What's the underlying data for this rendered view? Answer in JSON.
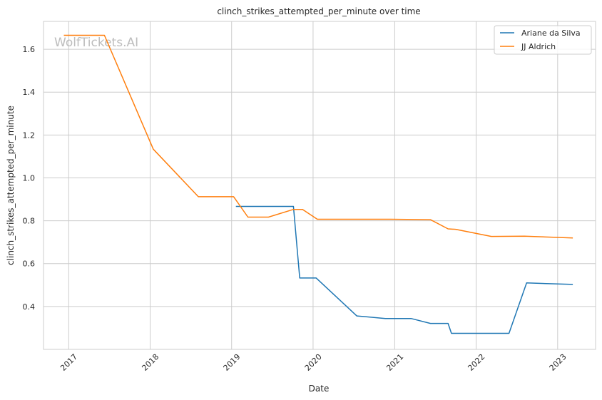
{
  "chart_data": {
    "type": "line",
    "title": "clinch_strikes_attempted_per_minute over time",
    "xlabel": "Date",
    "ylabel": "clinch_strikes_attempted_per_minute",
    "watermark": "WolfTickets.AI",
    "x_ticks": [
      "2017",
      "2018",
      "2019",
      "2020",
      "2021",
      "2022",
      "2023"
    ],
    "y_ticks": [
      "0.4",
      "0.6",
      "0.8",
      "1.0",
      "1.2",
      "1.4",
      "1.6"
    ],
    "xlim": [
      "2016-09-10",
      "2023-06-20"
    ],
    "ylim": [
      0.2,
      1.73
    ],
    "grid": true,
    "legend_position": "top-right",
    "series": [
      {
        "name": "Ariane da Silva",
        "color": "#1f77b4",
        "points": [
          [
            "2019-01-20",
            0.867
          ],
          [
            "2019-10-05",
            0.867
          ],
          [
            "2019-11-02",
            0.533
          ],
          [
            "2020-01-15",
            0.533
          ],
          [
            "2020-07-15",
            0.356
          ],
          [
            "2020-11-20",
            0.344
          ],
          [
            "2021-03-15",
            0.344
          ],
          [
            "2021-06-10",
            0.321
          ],
          [
            "2021-08-28",
            0.321
          ],
          [
            "2021-09-12",
            0.275
          ],
          [
            "2022-05-28",
            0.275
          ],
          [
            "2022-08-15",
            0.51
          ],
          [
            "2023-03-10",
            0.503
          ]
        ]
      },
      {
        "name": "JJ Aldrich",
        "color": "#ff7f0e",
        "points": [
          [
            "2016-12-10",
            1.665
          ],
          [
            "2017-06-10",
            1.665
          ],
          [
            "2018-01-15",
            1.134
          ],
          [
            "2018-08-05",
            0.912
          ],
          [
            "2019-01-10",
            0.912
          ],
          [
            "2019-03-15",
            0.817
          ],
          [
            "2019-06-15",
            0.817
          ],
          [
            "2019-10-05",
            0.853
          ],
          [
            "2019-11-15",
            0.853
          ],
          [
            "2020-01-20",
            0.807
          ],
          [
            "2020-12-15",
            0.807
          ],
          [
            "2021-06-10",
            0.805
          ],
          [
            "2021-08-28",
            0.762
          ],
          [
            "2021-10-01",
            0.76
          ],
          [
            "2022-03-10",
            0.727
          ],
          [
            "2022-08-05",
            0.728
          ],
          [
            "2023-03-10",
            0.72
          ]
        ]
      }
    ]
  }
}
